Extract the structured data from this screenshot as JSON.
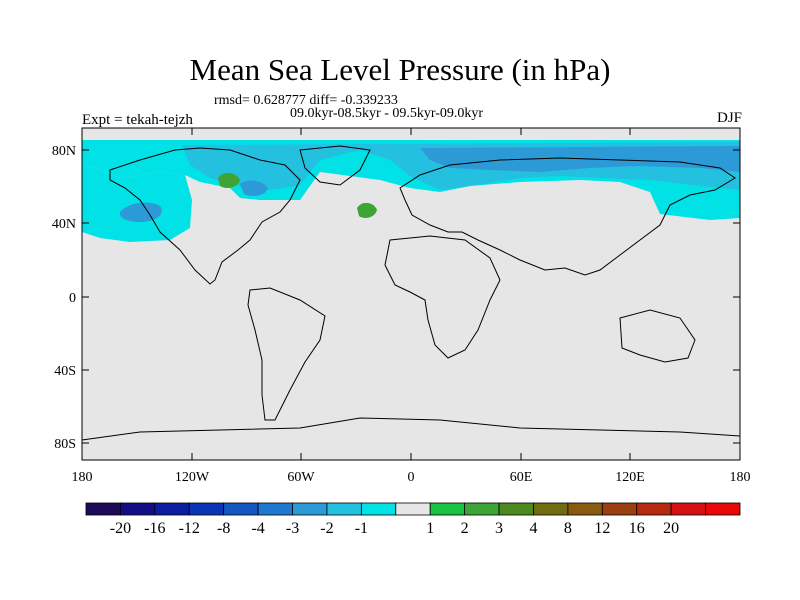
{
  "title": "Mean Sea Level Pressure (in hPa)",
  "subtitle_stats": "rmsd= 0.628777 diff= -0.339233",
  "subtitle_period": "09.0kyr-08.5kyr - 09.5kyr-09.0kyr",
  "left_label": "Expt = tekah-tejzh",
  "right_label": "DJF",
  "lat_ticks": [
    "80N",
    "40N",
    "0",
    "40S",
    "80S"
  ],
  "lon_ticks": [
    "180",
    "120W",
    "60W",
    "0",
    "60E",
    "120E",
    "180"
  ],
  "colorbar": {
    "colors": [
      "#1d0a57",
      "#120e86",
      "#0c1da0",
      "#0a35b4",
      "#1357c2",
      "#1e78cf",
      "#2d9ad8",
      "#24c0e0",
      "#00e2e6",
      "#e6e6e6",
      "#1ac244",
      "#3ea436",
      "#4c8a20",
      "#706c10",
      "#895a10",
      "#9b3e10",
      "#b72a10",
      "#d41010",
      "#e80808"
    ],
    "labels": [
      "-20",
      "-16",
      "-12",
      "-8",
      "-4",
      "-3",
      "-2",
      "-1",
      "1",
      "2",
      "3",
      "4",
      "8",
      "12",
      "16",
      "20"
    ]
  }
}
